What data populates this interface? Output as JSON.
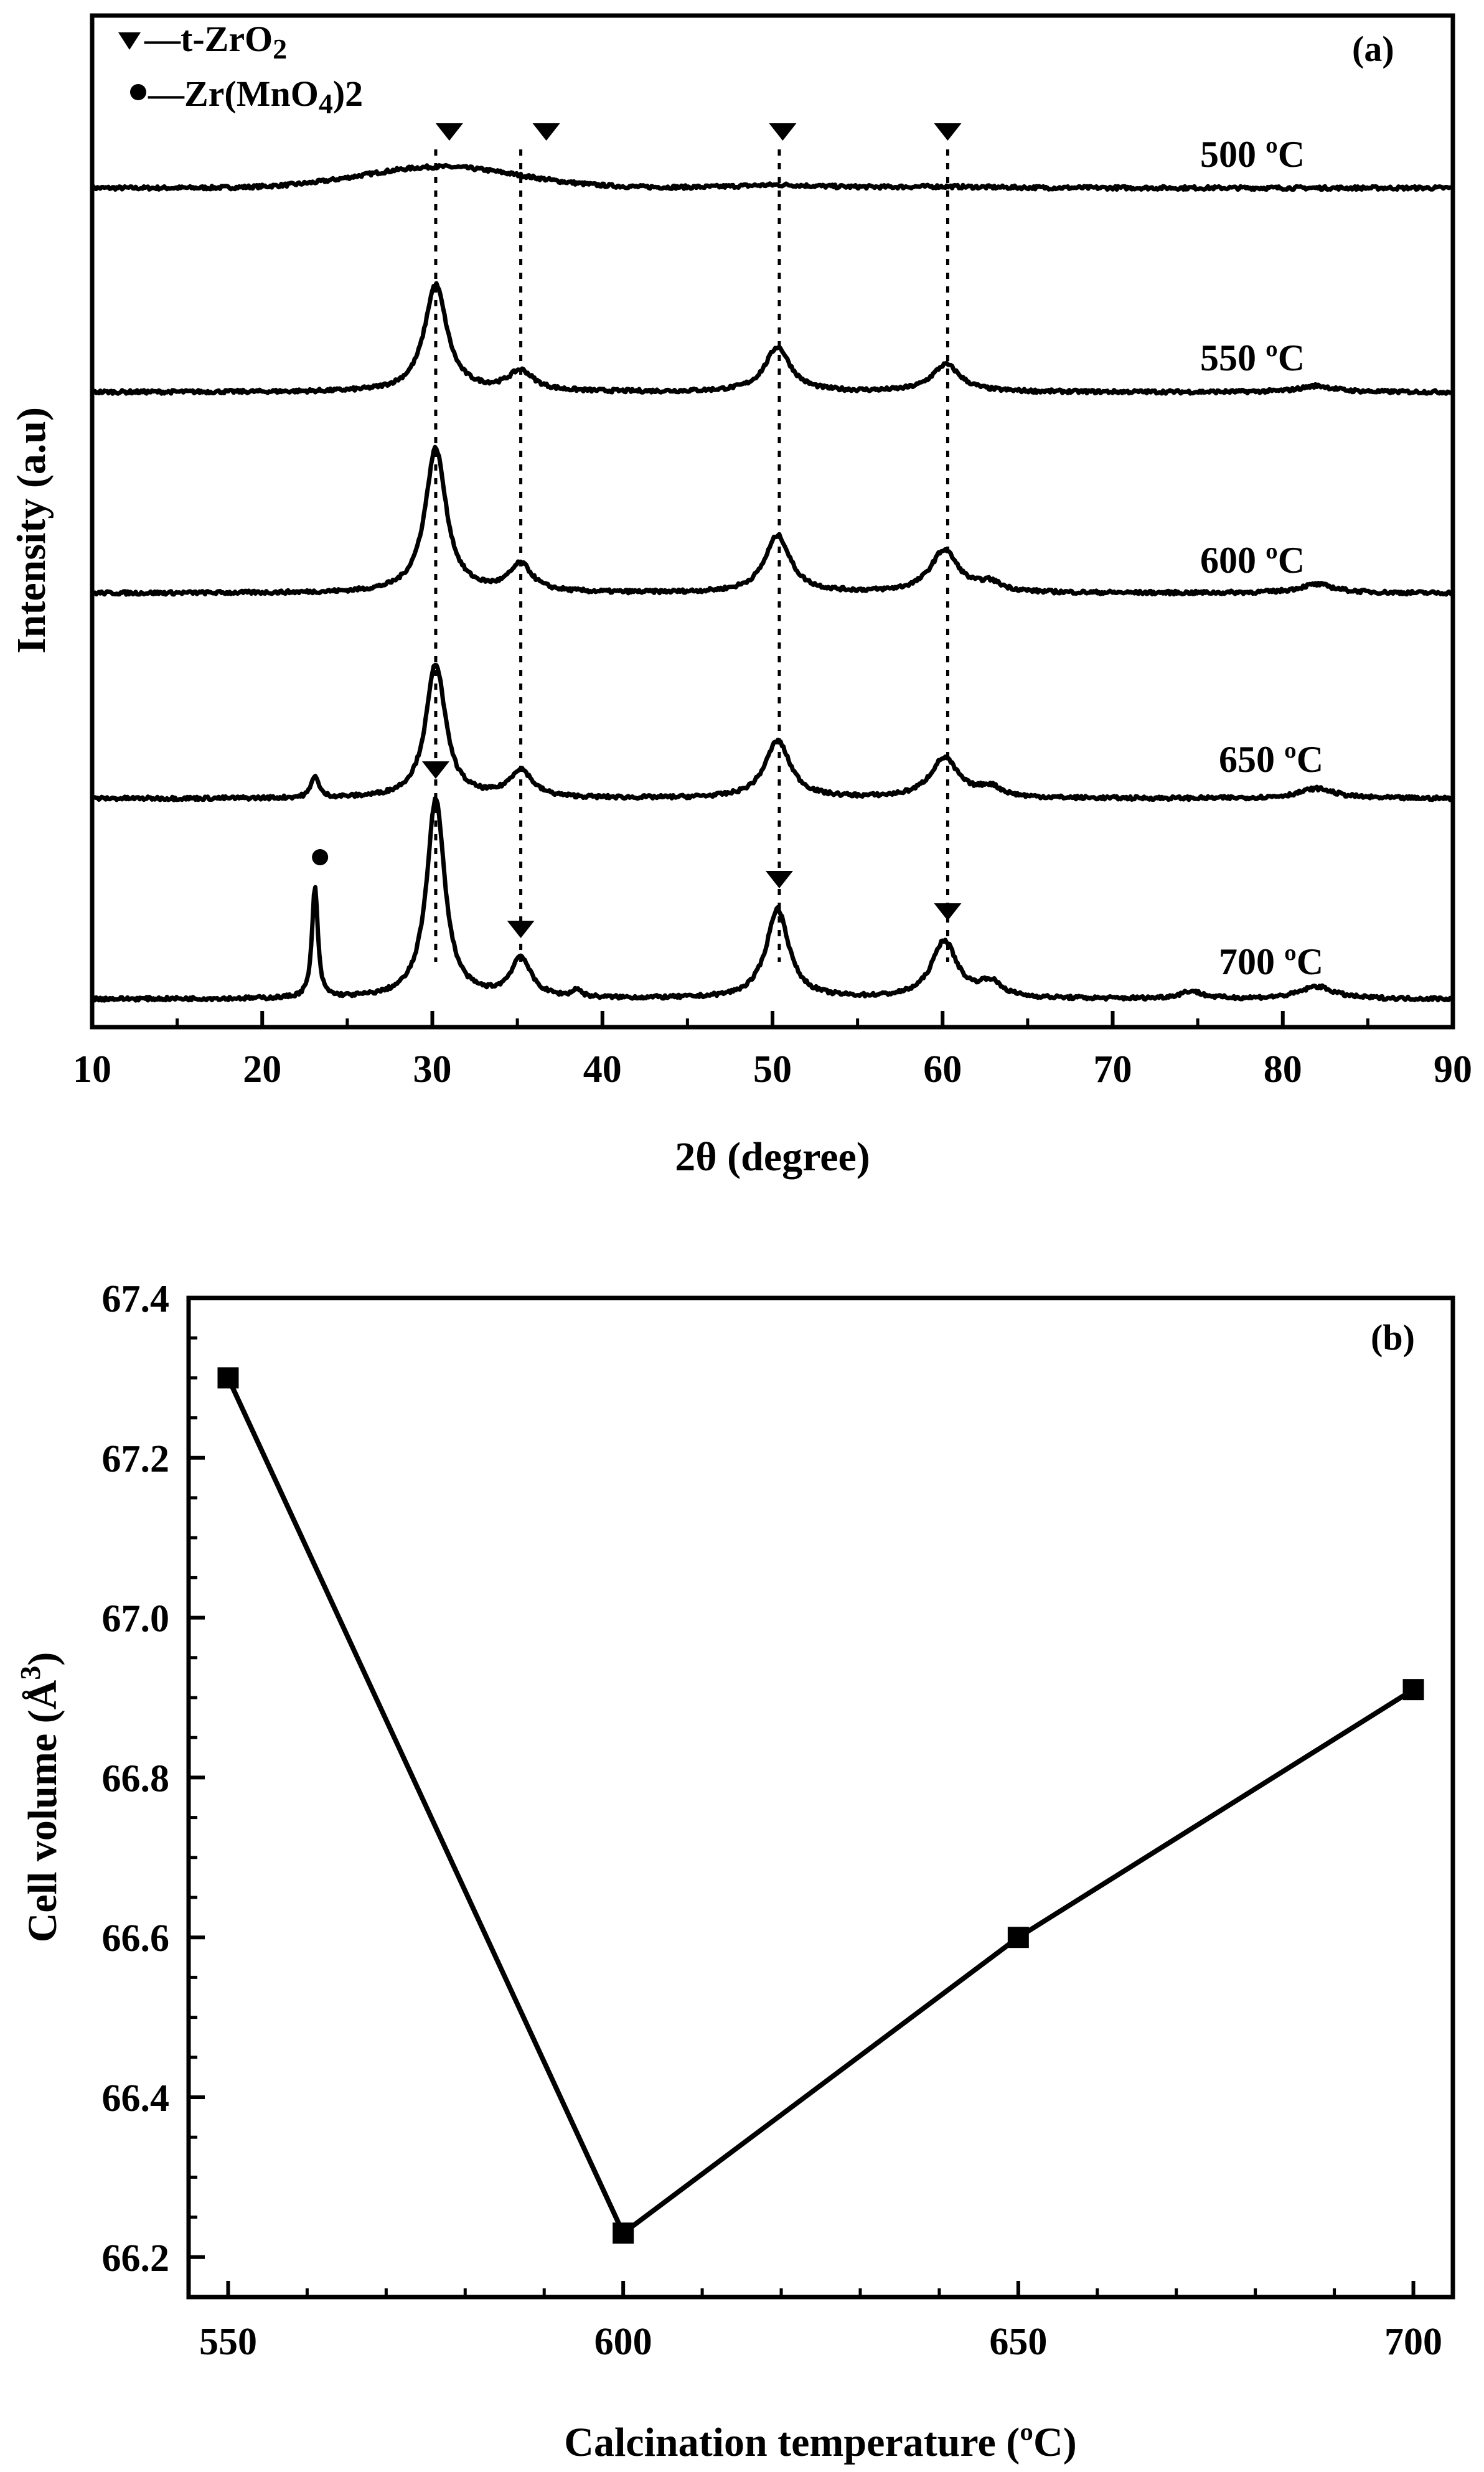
{
  "figure": {
    "colors": {
      "ink": "#000000",
      "background": "#ffffff"
    }
  },
  "chart_data": [
    {
      "type": "line",
      "panel_label": "(a)",
      "title": "",
      "xlabel": "2θ (degree)",
      "ylabel": "Intensity (a.u)",
      "xlim": [
        10,
        90
      ],
      "xticks": [
        10,
        20,
        30,
        40,
        50,
        60,
        70,
        80,
        90
      ],
      "y_ticks_shown": false,
      "legend": [
        {
          "marker": "triangle-down",
          "text": "—t-ZrO",
          "sub": "2",
          "tail": ""
        },
        {
          "marker": "circle",
          "text": "—Zr(MnO",
          "sub": "4",
          "tail": ")2"
        }
      ],
      "reference_lines_2theta": [
        30.2,
        35.2,
        50.4,
        60.3
      ],
      "series": [
        {
          "name": "500 °C",
          "label": "500 ºC",
          "baseline": 0.0,
          "broad_hump": {
            "center": 30.5,
            "width": 6.5,
            "height": 0.85
          },
          "peaks": [
            {
              "center": 50.3,
              "width": 3.0,
              "height": 0.12
            },
            {
              "center": 60.0,
              "width": 3.0,
              "height": 0.05
            }
          ],
          "markers": [
            {
              "type": "triangle-down",
              "x": 31.0
            },
            {
              "type": "triangle-down",
              "x": 36.7
            },
            {
              "type": "triangle-down",
              "x": 50.6
            },
            {
              "type": "triangle-down",
              "x": 60.3
            }
          ]
        },
        {
          "name": "550 °C",
          "label": "550 ºC",
          "baseline": 0.0,
          "peaks": [
            {
              "center": 30.2,
              "width": 0.8,
              "height": 4.3
            },
            {
              "center": 35.2,
              "width": 0.9,
              "height": 0.8
            },
            {
              "center": 50.3,
              "width": 0.9,
              "height": 1.8
            },
            {
              "center": 60.2,
              "width": 1.0,
              "height": 1.1
            },
            {
              "center": 82.0,
              "width": 1.2,
              "height": 0.25
            }
          ],
          "markers": []
        },
        {
          "name": "600 °C",
          "label": "600 ºC",
          "baseline": 0.0,
          "peaks": [
            {
              "center": 30.2,
              "width": 0.75,
              "height": 5.8
            },
            {
              "center": 35.2,
              "width": 0.8,
              "height": 1.1
            },
            {
              "center": 50.3,
              "width": 0.9,
              "height": 2.3
            },
            {
              "center": 60.1,
              "width": 1.0,
              "height": 1.7
            },
            {
              "center": 62.8,
              "width": 0.8,
              "height": 0.35
            },
            {
              "center": 82.0,
              "width": 1.3,
              "height": 0.35
            }
          ],
          "markers": []
        },
        {
          "name": "650 °C",
          "label": "650 ºC",
          "baseline": 0.0,
          "peaks": [
            {
              "center": 23.1,
              "width": 0.25,
              "height": 0.9
            },
            {
              "center": 30.2,
              "width": 0.7,
              "height": 5.4
            },
            {
              "center": 35.2,
              "width": 0.8,
              "height": 1.1
            },
            {
              "center": 50.3,
              "width": 0.9,
              "height": 2.3
            },
            {
              "center": 60.1,
              "width": 1.0,
              "height": 1.6
            },
            {
              "center": 62.8,
              "width": 0.8,
              "height": 0.4
            },
            {
              "center": 82.0,
              "width": 1.3,
              "height": 0.4
            }
          ],
          "markers": []
        },
        {
          "name": "700 °C",
          "label": "700 ºC",
          "baseline": 0.0,
          "peaks": [
            {
              "center": 23.1,
              "width": 0.2,
              "height": 4.5
            },
            {
              "center": 30.2,
              "width": 0.65,
              "height": 8.0
            },
            {
              "center": 35.2,
              "width": 0.7,
              "height": 1.6
            },
            {
              "center": 38.5,
              "width": 0.3,
              "height": 0.3
            },
            {
              "center": 50.3,
              "width": 0.8,
              "height": 3.6
            },
            {
              "center": 60.1,
              "width": 0.9,
              "height": 2.3
            },
            {
              "center": 62.8,
              "width": 0.8,
              "height": 0.6
            },
            {
              "center": 74.6,
              "width": 0.8,
              "height": 0.3
            },
            {
              "center": 82.0,
              "width": 1.2,
              "height": 0.5
            }
          ],
          "markers": [
            {
              "type": "circle",
              "x": 23.4
            },
            {
              "type": "triangle-down",
              "x": 30.2
            },
            {
              "type": "triangle-down",
              "x": 35.2
            },
            {
              "type": "triangle-down",
              "x": 50.4
            },
            {
              "type": "triangle-down",
              "x": 60.3
            }
          ]
        }
      ]
    },
    {
      "type": "line",
      "panel_label": "(b)",
      "title": "",
      "xlabel": "Calcination temperature (ºC)",
      "ylabel_main": "Cell volume (Å",
      "ylabel_sup": "3",
      "ylabel_tail": ")",
      "xlim": [
        545,
        705
      ],
      "ylim": [
        66.15,
        67.4
      ],
      "xticks": [
        550,
        600,
        650,
        700
      ],
      "yticks": [
        66.2,
        66.4,
        66.6,
        66.8,
        67.0,
        67.2,
        67.4
      ],
      "ytick_labels": [
        "66.2",
        "66.4",
        "66.6",
        "66.8",
        "67.0",
        "67.2",
        "67.4"
      ],
      "marker": "square",
      "series": [
        {
          "name": "Cell volume",
          "x": [
            550,
            600,
            650,
            700
          ],
          "y": [
            67.3,
            66.23,
            66.6,
            66.91
          ]
        }
      ]
    }
  ]
}
